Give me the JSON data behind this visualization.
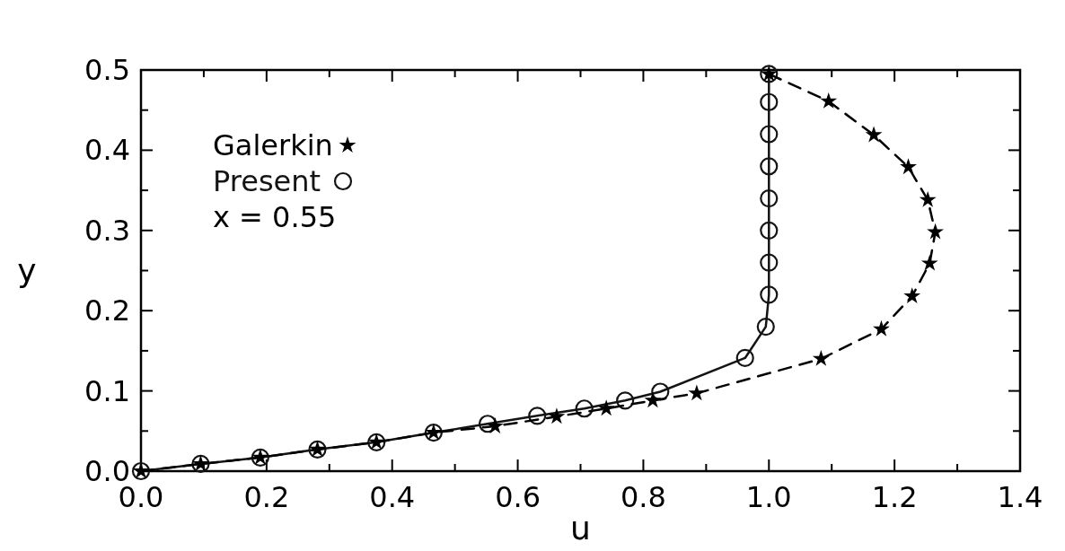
{
  "chart_data": {
    "type": "line",
    "xlabel": "u",
    "ylabel": "y",
    "xlim": [
      0,
      1.4
    ],
    "ylim": [
      0,
      0.5
    ],
    "xticks": [
      {
        "value": 0,
        "label": "0.0"
      },
      {
        "value": 0.1,
        "label": null
      },
      0.2,
      {
        "value": 0.3,
        "label": null
      },
      0.4,
      {
        "value": 0.5,
        "label": null
      },
      0.6,
      {
        "value": 0.7,
        "label": null
      },
      0.8,
      {
        "value": 0.9,
        "label": null
      },
      {
        "value": 1,
        "label": "1.0"
      },
      {
        "value": 1.1,
        "label": null
      },
      1.2,
      {
        "value": 1.3,
        "label": null
      },
      1.4
    ],
    "yticks": [
      {
        "value": 0,
        "label": "0.0"
      },
      {
        "value": 0.05,
        "label": null
      },
      0.1,
      {
        "value": 0.15,
        "label": null
      },
      0.2,
      {
        "value": 0.25,
        "label": null
      },
      0.3,
      {
        "value": 0.35,
        "label": null
      },
      0.4,
      {
        "value": 0.45,
        "label": null
      },
      0.5
    ],
    "series": [
      {
        "name": "Galerkin",
        "color": "#000000",
        "marker": "star",
        "line_style": "dashed",
        "x": [
          0,
          0.095,
          0.19,
          0.281,
          0.375,
          0.466,
          0.564,
          0.662,
          0.741,
          0.815,
          0.885,
          1.083,
          1.179,
          1.228,
          1.256,
          1.265,
          1.253,
          1.222,
          1.167,
          1.095,
          1.0
        ],
        "values": [
          0,
          0.009,
          0.017,
          0.027,
          0.036,
          0.048,
          0.056,
          0.068,
          0.078,
          0.088,
          0.097,
          0.14,
          0.177,
          0.218,
          0.259,
          0.298,
          0.338,
          0.379,
          0.419,
          0.461,
          0.495
        ]
      },
      {
        "name": "Present",
        "color": "#141414",
        "marker": "circle",
        "line_style": "solid",
        "x": [
          0,
          0.095,
          0.19,
          0.281,
          0.375,
          0.466,
          0.552,
          0.631,
          0.706,
          0.771,
          0.827,
          0.962,
          0.995,
          1.0,
          1.0,
          1.0,
          1.0,
          1.0,
          1.0,
          1.0,
          1.0
        ],
        "values": [
          0,
          0.009,
          0.017,
          0.027,
          0.036,
          0.048,
          0.059,
          0.069,
          0.078,
          0.088,
          0.099,
          0.141,
          0.18,
          0.22,
          0.26,
          0.3,
          0.34,
          0.38,
          0.42,
          0.46,
          0.495
        ]
      }
    ],
    "legend": "top left",
    "annotations": [
      "x = 0.55"
    ]
  }
}
